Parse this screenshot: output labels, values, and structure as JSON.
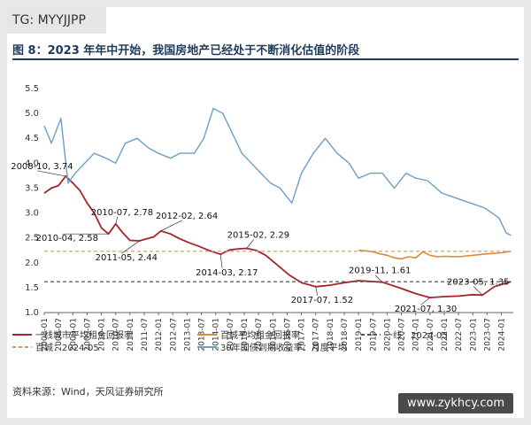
{
  "badge": "TG: MYYJJPP",
  "figure_title": "图 8：2023 年年中开始，我国房地产已经处于不断消化估值的阶段",
  "source": "资料来源：Wind，天风证券研究所",
  "watermark": "www.zykhcy.com",
  "colors": {
    "city100": "#a8232b",
    "rent_city100": "#d98b3c",
    "tier1_ref": "#555555",
    "city100_ref": "#c9a05a",
    "bond30": "#6b9fc6"
  },
  "chart_data": {
    "type": "line",
    "ylim": [
      1.0,
      5.5
    ],
    "yticks": [
      "1.0",
      "1.5",
      "2.0",
      "2.5",
      "3.0",
      "3.5",
      "4.0",
      "4.5",
      "5.0",
      "5.5"
    ],
    "xticks": [
      "2008-01",
      "2008-07",
      "2009-01",
      "2009-07",
      "2010-01",
      "2010-07",
      "2011-01",
      "2011-07",
      "2012-01",
      "2012-07",
      "2013-01",
      "2013-07",
      "2014-01",
      "2014-07",
      "2015-01",
      "2015-07",
      "2016-01",
      "2016-07",
      "2017-01",
      "2017-07",
      "2018-01",
      "2018-07",
      "2019-01",
      "2019-07",
      "2020-01",
      "2020-07",
      "2021-01",
      "2021-07",
      "2022-01",
      "2022-07",
      "2023-01",
      "2023-07",
      "2024-01"
    ],
    "series": [
      {
        "name": "一线城市平均租金回报率",
        "style": "solid",
        "points": [
          [
            "2008-01",
            3.4
          ],
          [
            "2008-04",
            3.5
          ],
          [
            "2008-07",
            3.55
          ],
          [
            "2008-10",
            3.74
          ],
          [
            "2009-01",
            3.6
          ],
          [
            "2009-04",
            3.45
          ],
          [
            "2009-07",
            3.2
          ],
          [
            "2009-10",
            3.0
          ],
          [
            "2010-01",
            2.7
          ],
          [
            "2010-04",
            2.58
          ],
          [
            "2010-07",
            2.78
          ],
          [
            "2010-10",
            2.6
          ],
          [
            "2011-01",
            2.45
          ],
          [
            "2011-05",
            2.44
          ],
          [
            "2011-08",
            2.48
          ],
          [
            "2011-11",
            2.52
          ],
          [
            "2012-02",
            2.64
          ],
          [
            "2012-06",
            2.58
          ],
          [
            "2012-10",
            2.48
          ],
          [
            "2013-02",
            2.4
          ],
          [
            "2013-06",
            2.33
          ],
          [
            "2013-10",
            2.25
          ],
          [
            "2014-03",
            2.17
          ],
          [
            "2014-07",
            2.26
          ],
          [
            "2014-11",
            2.28
          ],
          [
            "2015-02",
            2.29
          ],
          [
            "2015-06",
            2.25
          ],
          [
            "2015-10",
            2.15
          ],
          [
            "2016-03",
            1.95
          ],
          [
            "2016-08",
            1.75
          ],
          [
            "2017-01",
            1.6
          ],
          [
            "2017-07",
            1.52
          ],
          [
            "2018-01",
            1.55
          ],
          [
            "2018-07",
            1.6
          ],
          [
            "2019-01",
            1.64
          ],
          [
            "2019-11",
            1.61
          ],
          [
            "2020-06",
            1.5
          ],
          [
            "2021-01",
            1.38
          ],
          [
            "2021-07",
            1.3
          ],
          [
            "2022-01",
            1.32
          ],
          [
            "2022-07",
            1.33
          ],
          [
            "2023-01",
            1.36
          ],
          [
            "2023-05",
            1.35
          ],
          [
            "2023-10",
            1.52
          ],
          [
            "2024-05",
            1.62
          ]
        ]
      },
      {
        "name": "百城平均租金回报率",
        "style": "solid",
        "points": [
          [
            "2019-01",
            2.25
          ],
          [
            "2019-04",
            2.24
          ],
          [
            "2019-07",
            2.22
          ],
          [
            "2019-10",
            2.18
          ],
          [
            "2020-01",
            2.15
          ],
          [
            "2020-04",
            2.1
          ],
          [
            "2020-07",
            2.08
          ],
          [
            "2020-10",
            2.12
          ],
          [
            "2021-01",
            2.1
          ],
          [
            "2021-04",
            2.22
          ],
          [
            "2021-07",
            2.15
          ],
          [
            "2021-10",
            2.12
          ],
          [
            "2022-01",
            2.13
          ],
          [
            "2022-07",
            2.12
          ],
          [
            "2023-01",
            2.15
          ],
          [
            "2023-07",
            2.18
          ],
          [
            "2024-01",
            2.2
          ],
          [
            "2024-05",
            2.23
          ]
        ]
      },
      {
        "name": "一线：2024-05",
        "style": "dashed",
        "points": [
          [
            "2008-01",
            1.62
          ],
          [
            "2024-05",
            1.62
          ]
        ]
      },
      {
        "name": "百城：2024-05",
        "style": "dashed",
        "points": [
          [
            "2008-01",
            2.23
          ],
          [
            "2024-05",
            2.23
          ]
        ]
      },
      {
        "name": "30年国债到期收益率：月度平均",
        "style": "solid",
        "points": [
          [
            "2008-01",
            4.75
          ],
          [
            "2008-04",
            4.4
          ],
          [
            "2008-08",
            4.9
          ],
          [
            "2008-11",
            3.6
          ],
          [
            "2009-02",
            3.8
          ],
          [
            "2009-06",
            4.0
          ],
          [
            "2009-10",
            4.2
          ],
          [
            "2010-03",
            4.1
          ],
          [
            "2010-07",
            4.0
          ],
          [
            "2010-11",
            4.4
          ],
          [
            "2011-04",
            4.5
          ],
          [
            "2011-09",
            4.3
          ],
          [
            "2012-01",
            4.2
          ],
          [
            "2012-06",
            4.1
          ],
          [
            "2012-10",
            4.2
          ],
          [
            "2013-04",
            4.2
          ],
          [
            "2013-08",
            4.5
          ],
          [
            "2013-12",
            5.1
          ],
          [
            "2014-04",
            5.0
          ],
          [
            "2014-08",
            4.6
          ],
          [
            "2014-12",
            4.2
          ],
          [
            "2015-04",
            4.0
          ],
          [
            "2015-08",
            3.8
          ],
          [
            "2015-12",
            3.6
          ],
          [
            "2016-04",
            3.5
          ],
          [
            "2016-09",
            3.2
          ],
          [
            "2017-01",
            3.8
          ],
          [
            "2017-06",
            4.2
          ],
          [
            "2017-11",
            4.5
          ],
          [
            "2018-04",
            4.2
          ],
          [
            "2018-09",
            4.0
          ],
          [
            "2019-01",
            3.7
          ],
          [
            "2019-06",
            3.8
          ],
          [
            "2019-11",
            3.8
          ],
          [
            "2020-04",
            3.5
          ],
          [
            "2020-09",
            3.8
          ],
          [
            "2021-01",
            3.7
          ],
          [
            "2021-06",
            3.65
          ],
          [
            "2021-12",
            3.4
          ],
          [
            "2022-06",
            3.3
          ],
          [
            "2022-12",
            3.2
          ],
          [
            "2023-06",
            3.1
          ],
          [
            "2023-12",
            2.9
          ],
          [
            "2024-03",
            2.6
          ],
          [
            "2024-05",
            2.55
          ]
        ]
      }
    ],
    "annotations": [
      {
        "label": "2008-10, 3.74",
        "x": "2008-10",
        "y": 3.74
      },
      {
        "label": "2010-07, 2.78",
        "x": "2010-07",
        "y": 2.78
      },
      {
        "label": "2010-04, 2.58",
        "x": "2010-04",
        "y": 2.58
      },
      {
        "label": "2012-02, 2.64",
        "x": "2012-02",
        "y": 2.64
      },
      {
        "label": "2011-05, 2.44",
        "x": "2011-05",
        "y": 2.44
      },
      {
        "label": "2015-02, 2.29",
        "x": "2015-02",
        "y": 2.29
      },
      {
        "label": "2014-03, 2.17",
        "x": "2014-03",
        "y": 2.17
      },
      {
        "label": "2019-11, 1.61",
        "x": "2019-11",
        "y": 1.61
      },
      {
        "label": "2017-07, 1.52",
        "x": "2017-07",
        "y": 1.52
      },
      {
        "label": "2023-05, 1.35",
        "x": "2023-05",
        "y": 1.35
      },
      {
        "label": "2021-07, 1.30",
        "x": "2021-07",
        "y": 1.3
      }
    ]
  }
}
